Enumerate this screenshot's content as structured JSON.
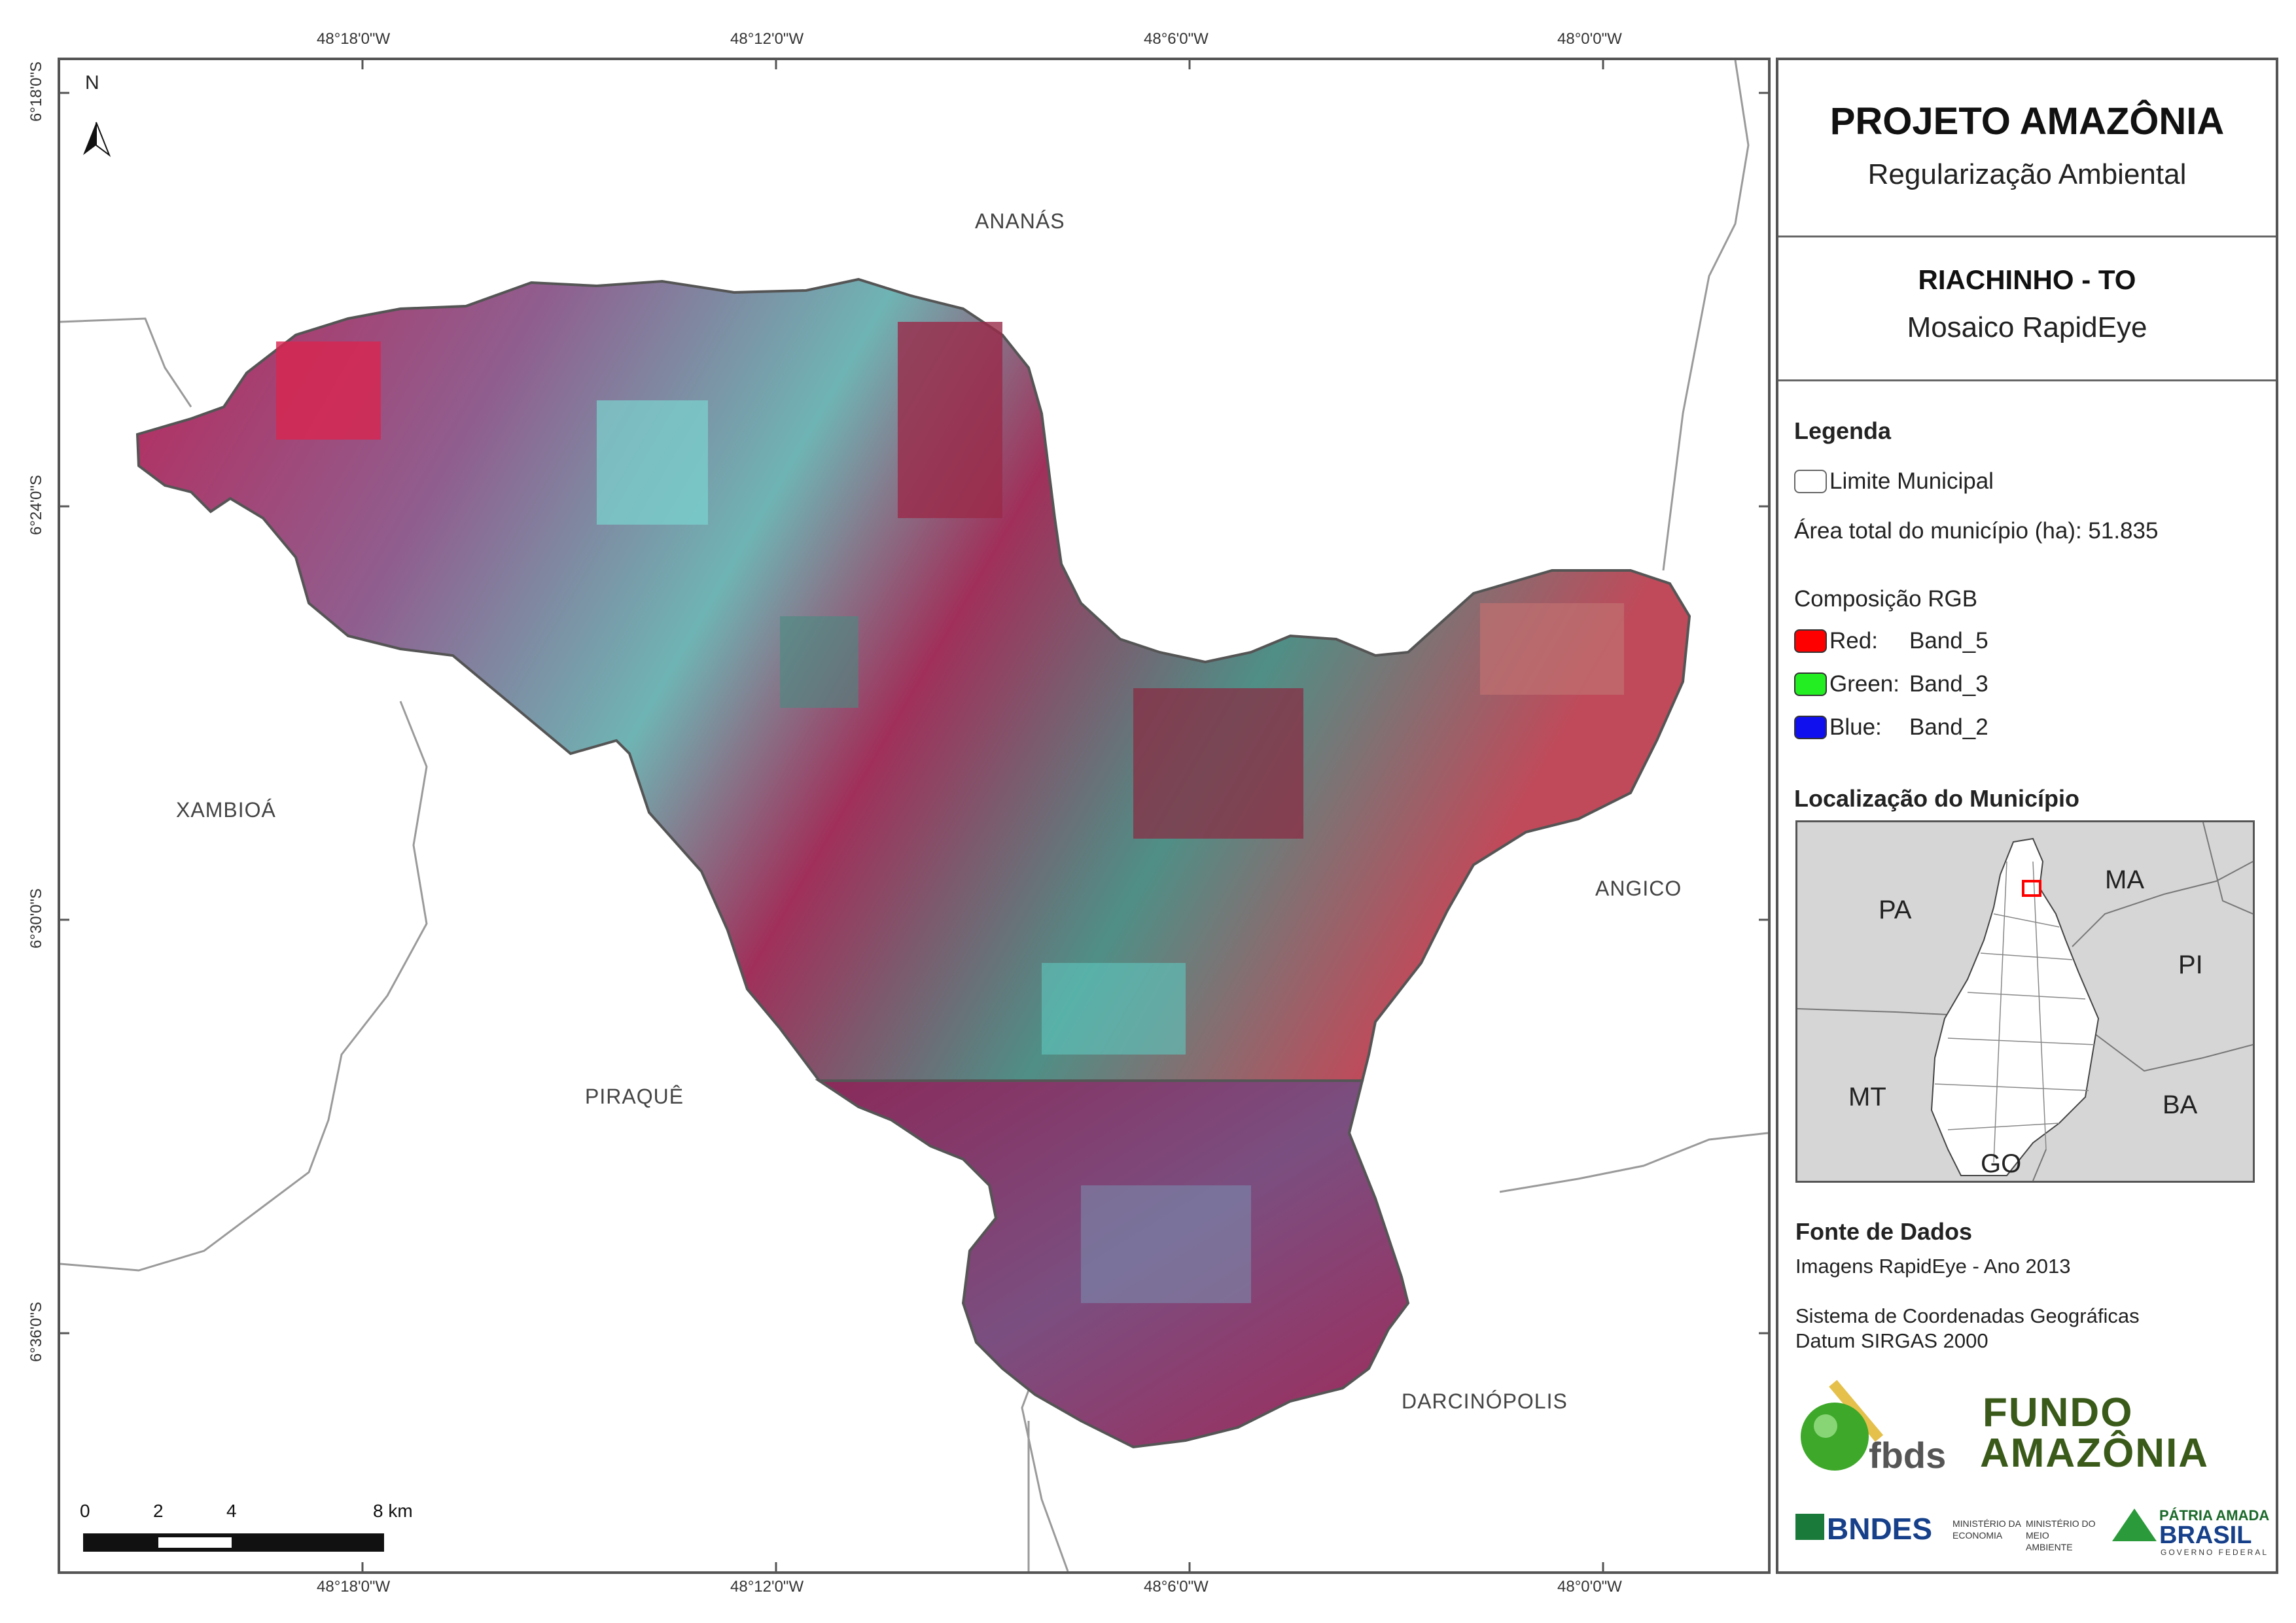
{
  "title": "PROJETO AMAZÔNIA",
  "subtitle": "Regularização Ambiental",
  "municipality": "RIACHINHO - TO",
  "mosaic": "Mosaico RapidEye",
  "legend": {
    "heading": "Legenda",
    "boundary_label": "Limite Municipal",
    "area_text": "Área total do município (ha): 51.835",
    "rgb_heading": "Composição RGB",
    "bands": [
      {
        "name": "Red:",
        "band": "Band_5",
        "color": "#ff0000"
      },
      {
        "name": "Green:",
        "band": "Band_3",
        "color": "#22ee22"
      },
      {
        "name": "Blue:",
        "band": "Band_2",
        "color": "#1010ee"
      }
    ]
  },
  "location": {
    "heading": "Localização do Município",
    "states": [
      "PA",
      "MA",
      "PI",
      "MT",
      "BA",
      "GO"
    ]
  },
  "sources": {
    "heading": "Fonte de Dados",
    "imagery": "Imagens RapidEye - Ano 2013",
    "crs": "Sistema de Coordenadas Geográficas",
    "datum": "Datum SIRGAS 2000"
  },
  "logos": {
    "fbds": "fbds",
    "fundo_line1": "FUNDO",
    "fundo_line2": "AMAZÔNIA",
    "bndes": "BNDES",
    "min_economia": "MINISTÉRIO DA ECONOMIA",
    "min_meio": "MINISTÉRIO DO MEIO AMBIENTE",
    "patria": "PÁTRIA AMADA",
    "brasil": "BRASIL",
    "gov": "GOVERNO FEDERAL"
  },
  "map": {
    "north": "N",
    "neighbors": [
      "ANANÁS",
      "XAMBIOÁ",
      "ANGICO",
      "PIRAQUÊ",
      "DARCINÓPOLIS"
    ],
    "lon_labels": [
      "48°18'0\"W",
      "48°12'0\"W",
      "48°6'0\"W",
      "48°0'0\"W"
    ],
    "lat_labels": [
      "6°18'0\"S",
      "6°24'0\"S",
      "6°30'0\"S",
      "6°36'0\"S"
    ],
    "scale_labels": [
      "0",
      "2",
      "4",
      "8 km"
    ]
  },
  "colors": {
    "frame": "#555555",
    "imagery_red": "#c8204a",
    "imagery_cyan": "#5fd8d0",
    "imagery_purple": "#8a3a6a",
    "inset_bg": "#d6d6d6",
    "location_marker": "#ff0000"
  }
}
